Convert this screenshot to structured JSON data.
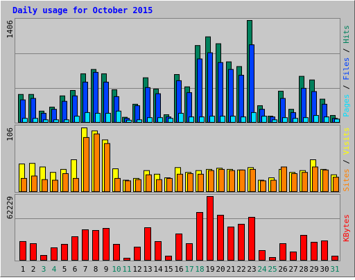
{
  "chart_data": [
    {
      "type": "bar",
      "title": "Daily usage for October 2015",
      "ylim": [
        0,
        1406
      ],
      "yticks": [
        1406
      ],
      "legend_separator": " / ",
      "series": [
        {
          "name": "Hits",
          "color": "#00805c",
          "values": [
            385,
            385,
            155,
            210,
            365,
            440,
            670,
            730,
            670,
            450,
            70,
            250,
            615,
            460,
            105,
            660,
            490,
            1060,
            1180,
            1085,
            835,
            770,
            1406,
            230,
            85,
            430,
            180,
            635,
            585,
            320,
            95
          ]
        },
        {
          "name": "Files",
          "color": "#0040ff",
          "values": [
            310,
            330,
            125,
            180,
            290,
            365,
            555,
            690,
            555,
            355,
            55,
            230,
            480,
            395,
            75,
            575,
            410,
            875,
            960,
            825,
            730,
            650,
            1070,
            180,
            75,
            330,
            135,
            470,
            425,
            250,
            55
          ]
        },
        {
          "name": "Pages",
          "color": "#00e0ff",
          "values": [
            55,
            55,
            35,
            35,
            35,
            85,
            135,
            125,
            125,
            155,
            30,
            35,
            65,
            65,
            55,
            125,
            75,
            75,
            85,
            85,
            85,
            75,
            135,
            85,
            35,
            65,
            55,
            65,
            95,
            75,
            45
          ]
        }
      ]
    },
    {
      "type": "bar",
      "ylim": [
        0,
        106
      ],
      "yticks": [
        106
      ],
      "legend_separator": " / ",
      "series": [
        {
          "name": "Visits",
          "color": "#ffff00",
          "values": [
            46,
            47,
            41,
            32,
            37,
            53,
            106,
            101,
            86,
            38,
            19,
            22,
            35,
            29,
            23,
            40,
            32,
            35,
            37,
            39,
            37,
            36,
            40,
            19,
            23,
            37,
            32,
            35,
            53,
            37,
            28
          ]
        },
        {
          "name": "Sites",
          "color": "#ff8000",
          "values": [
            22,
            26,
            20,
            19,
            30,
            22,
            90,
            96,
            80,
            22,
            18,
            20,
            28,
            20,
            22,
            29,
            30,
            29,
            35,
            37,
            35,
            36,
            37,
            18,
            19,
            41,
            30,
            32,
            41,
            36,
            24
          ]
        }
      ]
    },
    {
      "type": "bar",
      "ylim": [
        0,
        62229
      ],
      "yticks": [
        62229
      ],
      "categories": [
        "1",
        "2",
        "3",
        "4",
        "5",
        "6",
        "7",
        "8",
        "9",
        "10",
        "11",
        "12",
        "13",
        "14",
        "15",
        "16",
        "17",
        "18",
        "19",
        "20",
        "21",
        "22",
        "23",
        "24",
        "25",
        "26",
        "27",
        "28",
        "29",
        "30",
        "31"
      ],
      "category_colors": [
        "#000000",
        "#000000",
        "#00805c",
        "#00805c",
        "#000000",
        "#000000",
        "#000000",
        "#000000",
        "#000000",
        "#00805c",
        "#00805c",
        "#000000",
        "#000000",
        "#000000",
        "#000000",
        "#000000",
        "#00805c",
        "#00805c",
        "#000000",
        "#000000",
        "#000000",
        "#000000",
        "#000000",
        "#00805c",
        "#00805c",
        "#000000",
        "#000000",
        "#000000",
        "#000000",
        "#000000",
        "#00805c"
      ],
      "series": [
        {
          "name": "KBytes",
          "color": "#ff0000",
          "values": [
            18300,
            16230,
            4730,
            12175,
            15560,
            23000,
            29760,
            29090,
            31115,
            15560,
            2030,
            12850,
            31790,
            18265,
            4060,
            25700,
            16230,
            46670,
            62229,
            43970,
            32470,
            35170,
            41940,
            9470,
            2705,
            16230,
            8115,
            24350,
            17590,
            18940,
            4060
          ]
        }
      ]
    }
  ]
}
